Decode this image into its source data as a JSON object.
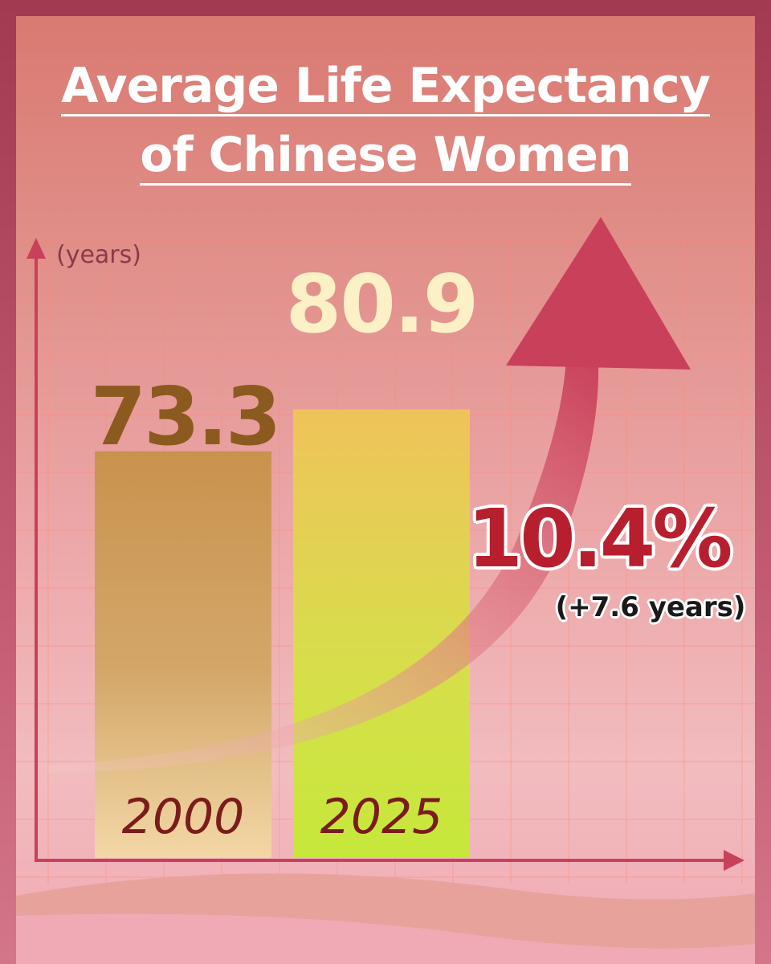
{
  "title": {
    "line1": "Average Life Expectancy",
    "line2": "of Chinese Women"
  },
  "y_unit": "(years)",
  "annotation": {
    "percent": "10.4%",
    "detail": "(+7.6 years)"
  },
  "colors": {
    "bar_2000": "#c9924e",
    "bar_2025": "#e6c84a",
    "value_2000": "#8b5a1e",
    "value_2025": "#fbf0c6",
    "axis": "#c9405a",
    "arrow": "#c9405a",
    "percent": "#b81f2e"
  },
  "chart_data": {
    "type": "bar",
    "categories": [
      "2000",
      "2025"
    ],
    "values": [
      73.3,
      80.9
    ],
    "value_labels": [
      "73.3",
      "80.9"
    ],
    "title": "Average Life Expectancy of Chinese Women",
    "xlabel": "",
    "ylabel": "(years)",
    "grid": true
  }
}
